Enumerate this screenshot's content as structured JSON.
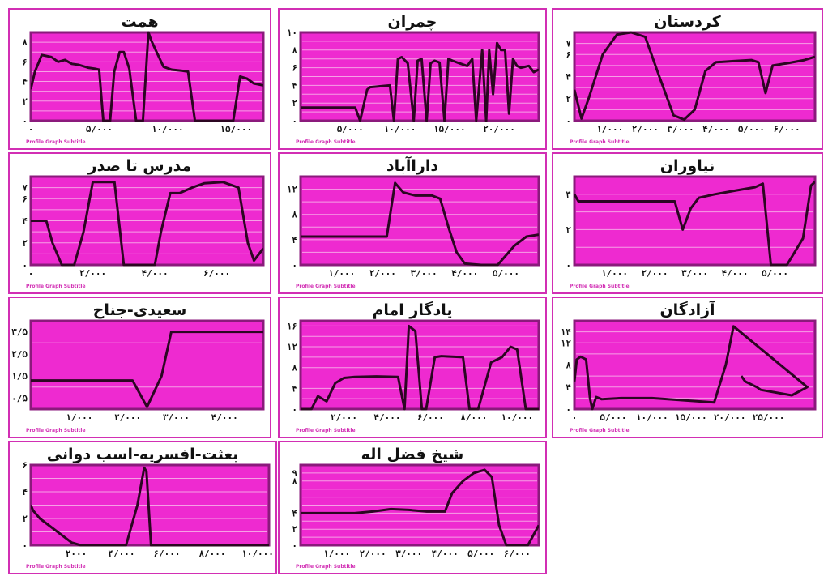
{
  "watermark": "Profile Graph Subtitle",
  "colors": {
    "plot_bg": "#ee2ad0",
    "frame": "#8b1a7c",
    "grid": "#f6a0e6",
    "line": "#2c0622",
    "border": "#d22fb4"
  },
  "chart_data": [
    {
      "type": "line",
      "title": "همت",
      "xlim": [
        0,
        17000
      ],
      "ylim": [
        0,
        9
      ],
      "xticks": [
        0,
        5000,
        10000,
        15000
      ],
      "xtick_labels": [
        "۰",
        "۵/۰۰۰",
        "۱۰/۰۰۰",
        "۱۵/۰۰۰"
      ],
      "yticks": [
        0,
        2,
        4,
        6,
        8
      ],
      "ytick_labels": [
        "۰",
        "۲",
        "۴",
        "۶",
        "۸"
      ],
      "x": [
        0,
        300,
        800,
        1500,
        2000,
        2500,
        3000,
        3500,
        4200,
        4700,
        5000,
        5300,
        5800,
        6100,
        6500,
        6800,
        7200,
        7700,
        8200,
        8600,
        8800,
        9200,
        9700,
        10300,
        11000,
        11500,
        12000,
        13000,
        14000,
        14500,
        14800,
        15300,
        15800,
        16300,
        17000
      ],
      "y": [
        3.2,
        5,
        6.7,
        6.5,
        6,
        6.2,
        5.8,
        5.7,
        5.4,
        5.3,
        5.2,
        0,
        0,
        5,
        7,
        7,
        5.3,
        0,
        0,
        9,
        8.2,
        7,
        5.5,
        5.2,
        5.1,
        5,
        0,
        0,
        0,
        0,
        0,
        4.5,
        4.3,
        3.8,
        3.6
      ]
    },
    {
      "type": "line",
      "title": "چمران",
      "xlim": [
        0,
        24000
      ],
      "ylim": [
        0,
        10
      ],
      "xticks": [
        5000,
        10000,
        15000,
        20000
      ],
      "xtick_labels": [
        "۵/۰۰۰",
        "۱۰/۰۰۰",
        "۱۵/۰۰۰",
        "۲۰/۰۰۰"
      ],
      "yticks": [
        0,
        2,
        4,
        6,
        8,
        10
      ],
      "ytick_labels": [
        "۰",
        "۲",
        "۴",
        "۶",
        "۸",
        "۱۰"
      ],
      "x": [
        0,
        5500,
        6000,
        6700,
        7000,
        9000,
        9400,
        9800,
        10200,
        10800,
        11400,
        11800,
        12200,
        12700,
        13100,
        13500,
        14000,
        14500,
        14900,
        15300,
        16000,
        16800,
        17300,
        17700,
        18300,
        18700,
        19000,
        19400,
        19800,
        20200,
        20600,
        21000,
        21400,
        21800,
        22200,
        23000,
        23500,
        24000
      ],
      "y": [
        1.5,
        1.5,
        0,
        3.5,
        3.8,
        4,
        0,
        7,
        7.2,
        6.5,
        0,
        6.8,
        7,
        0,
        6.5,
        6.8,
        6.6,
        0,
        7,
        6.8,
        6.5,
        6.2,
        7,
        0,
        8,
        0,
        8,
        3,
        8.8,
        8,
        8,
        0.8,
        7,
        6.2,
        6,
        6.2,
        5.5,
        5.8
      ]
    },
    {
      "type": "line",
      "title": "کردستان",
      "xlim": [
        0,
        6800
      ],
      "ylim": [
        0,
        8
      ],
      "xticks": [
        1000,
        2000,
        3000,
        4000,
        5000,
        6000
      ],
      "xtick_labels": [
        "۱/۰۰۰",
        "۲/۰۰۰",
        "۳/۰۰۰",
        "۴/۰۰۰",
        "۵/۰۰۰",
        "۶/۰۰۰"
      ],
      "yticks": [
        0,
        2,
        4,
        6,
        7
      ],
      "ytick_labels": [
        "۰",
        "۲",
        "۴",
        "۶",
        "۷"
      ],
      "x": [
        0,
        200,
        400,
        800,
        1200,
        1600,
        2000,
        2400,
        2800,
        3100,
        3400,
        3700,
        4000,
        4500,
        5000,
        5200,
        5400,
        5600,
        6000,
        6500,
        6800
      ],
      "y": [
        2.8,
        0.2,
        2,
        6,
        7.8,
        8,
        7.6,
        4,
        0.5,
        0.1,
        1,
        4.5,
        5.3,
        5.4,
        5.5,
        5.3,
        2.5,
        5,
        5.2,
        5.5,
        5.8
      ]
    },
    {
      "type": "line",
      "title": "مدرس تا صدر",
      "xlim": [
        0,
        7500
      ],
      "ylim": [
        0,
        8
      ],
      "xticks": [
        0,
        2000,
        4000,
        6000
      ],
      "xtick_labels": [
        "۰",
        "۲/۰۰۰",
        "۴/۰۰۰",
        "۶/۰۰۰"
      ],
      "yticks": [
        0,
        2,
        4,
        6,
        7
      ],
      "ytick_labels": [
        "۰",
        "۲",
        "۴",
        "۶",
        "۷"
      ],
      "x": [
        0,
        500,
        700,
        1000,
        1400,
        1700,
        2000,
        2400,
        2700,
        3000,
        3500,
        4000,
        4200,
        4500,
        4800,
        5200,
        5600,
        6200,
        6700,
        7000,
        7200,
        7500
      ],
      "y": [
        4,
        4,
        2,
        0,
        0,
        3,
        7.5,
        7.5,
        7.5,
        0,
        0,
        0,
        3,
        6.5,
        6.5,
        7,
        7.4,
        7.5,
        7,
        2,
        0.4,
        1.5
      ]
    },
    {
      "type": "line",
      "title": "داراآباد",
      "xlim": [
        0,
        5800
      ],
      "ylim": [
        0,
        14
      ],
      "xticks": [
        1000,
        2000,
        3000,
        4000,
        5000
      ],
      "xtick_labels": [
        "۱/۰۰۰",
        "۲/۰۰۰",
        "۳/۰۰۰",
        "۴/۰۰۰",
        "۵/۰۰۰"
      ],
      "yticks": [
        0,
        4,
        8,
        12
      ],
      "ytick_labels": [
        "۰",
        "۴",
        "۸",
        "۱۲"
      ],
      "x": [
        0,
        1900,
        2100,
        2300,
        2500,
        2800,
        3200,
        3400,
        3600,
        3800,
        4000,
        4400,
        4800,
        5200,
        5500,
        5800
      ],
      "y": [
        4.5,
        4.5,
        4.5,
        13,
        11.5,
        11,
        11,
        10.5,
        6,
        2,
        0.2,
        0,
        0,
        3,
        4.5,
        4.8
      ]
    },
    {
      "type": "line",
      "title": "نیاوران",
      "xlim": [
        0,
        6000
      ],
      "ylim": [
        0,
        5
      ],
      "xticks": [
        1000,
        2000,
        3000,
        4000,
        5000
      ],
      "xtick_labels": [
        "۱/۰۰۰",
        "۲/۰۰۰",
        "۳/۰۰۰",
        "۴/۰۰۰",
        "۵/۰۰۰"
      ],
      "yticks": [
        0,
        2,
        4
      ],
      "ytick_labels": [
        "۰",
        "۲",
        "۴"
      ],
      "x": [
        0,
        100,
        1500,
        2500,
        2700,
        2900,
        3100,
        3500,
        4000,
        4500,
        4700,
        4900,
        5300,
        5700,
        5900,
        6000
      ],
      "y": [
        4,
        3.6,
        3.6,
        3.6,
        2,
        3.2,
        3.8,
        4,
        4.2,
        4.4,
        4.6,
        0,
        0,
        1.5,
        4.5,
        4.7
      ]
    },
    {
      "type": "line",
      "title": "سعیدی-جناح",
      "xlim": [
        0,
        4800
      ],
      "ylim": [
        0,
        4
      ],
      "xticks": [
        1000,
        2000,
        3000,
        4000
      ],
      "xtick_labels": [
        "۱/۰۰۰",
        "۲/۰۰۰",
        "۳/۰۰۰",
        "۴/۰۰۰"
      ],
      "yticks": [
        0.5,
        1.5,
        2.5,
        3.5
      ],
      "ytick_labels": [
        "۰/۵",
        "۱/۵",
        "۲/۵",
        "۳/۵"
      ],
      "x": [
        0,
        1800,
        2100,
        2400,
        2700,
        2900,
        3100,
        4800
      ],
      "y": [
        1.3,
        1.3,
        1.3,
        0.1,
        1.5,
        3.5,
        3.5,
        3.5
      ]
    },
    {
      "type": "line",
      "title": "یادگار امام",
      "xlim": [
        0,
        11000
      ],
      "ylim": [
        0,
        17
      ],
      "xticks": [
        2000,
        4000,
        6000,
        8000,
        10000
      ],
      "xtick_labels": [
        "۲/۰۰۰",
        "۴/۰۰۰",
        "۶/۰۰۰",
        "۸/۰۰۰",
        "۱۰/۰۰۰"
      ],
      "yticks": [
        0,
        4,
        8,
        12,
        16
      ],
      "ytick_labels": [
        "۰",
        "۴",
        "۸",
        "۱۲",
        "۱۶"
      ],
      "x": [
        0,
        500,
        800,
        1200,
        1600,
        2000,
        2500,
        3500,
        4500,
        4800,
        5000,
        5300,
        5600,
        5800,
        6200,
        6500,
        7500,
        7800,
        8200,
        8800,
        9300,
        9700,
        10000,
        10400,
        10700,
        11000
      ],
      "y": [
        0,
        0,
        2.5,
        1.5,
        5,
        6,
        6.2,
        6.3,
        6.2,
        0,
        16,
        15,
        0,
        0,
        10,
        10.2,
        10,
        0,
        0,
        9,
        10,
        12,
        11.5,
        0,
        0,
        0
      ]
    },
    {
      "type": "line",
      "title": "آزادگان",
      "xlim": [
        0,
        31000
      ],
      "ylim": [
        0,
        16
      ],
      "xticks": [
        0,
        5000,
        10000,
        15000,
        20000,
        25000
      ],
      "xtick_labels": [
        "۰",
        "۵/۰۰۰",
        "۱۰/۰۰۰",
        "۱۵/۰۰۰",
        "۲۰/۰۰۰",
        "۲۵/۰۰۰"
      ],
      "yticks": [
        0,
        4,
        8,
        12,
        14
      ],
      "ytick_labels": [
        "۰",
        "۴",
        "۸",
        "۱۲",
        "۱۴"
      ],
      "x": [
        0,
        300,
        800,
        1500,
        2000,
        2300,
        2800,
        3500,
        6000,
        10000,
        15000,
        18000,
        19500,
        20500,
        30000,
        28000,
        24000,
        23500,
        22000,
        21500
      ],
      "y": [
        5,
        9,
        9.5,
        9,
        2,
        0,
        2.2,
        1.8,
        2,
        2,
        1.5,
        1.2,
        8,
        15,
        4,
        2.5,
        3.5,
        4,
        5,
        6
      ]
    },
    {
      "type": "line",
      "title": "بعثت-افسریه-اسب دوانی",
      "xlim": [
        0,
        10500
      ],
      "ylim": [
        0,
        6
      ],
      "xticks": [
        2000,
        4000,
        6000,
        8000,
        10000
      ],
      "xtick_labels": [
        "۲۰۰۰",
        "۴/۰۰۰",
        "۶/۰۰۰",
        "۸/۰۰۰",
        "۱۰/۰۰۰"
      ],
      "yticks": [
        0,
        2,
        4,
        6
      ],
      "ytick_labels": [
        "۰",
        "۲",
        "۴",
        "۶"
      ],
      "x": [
        0,
        100,
        400,
        1800,
        2200,
        4000,
        4200,
        4700,
        5000,
        5100,
        5300,
        5500,
        10500
      ],
      "y": [
        3,
        2.6,
        2,
        0.2,
        0,
        0,
        0,
        3,
        5.8,
        5.5,
        0,
        0,
        0
      ]
    },
    {
      "type": "line",
      "title": "شیخ فضل اله",
      "xlim": [
        0,
        6600
      ],
      "ylim": [
        0,
        10
      ],
      "xticks": [
        1000,
        2000,
        3000,
        4000,
        5000,
        6000
      ],
      "xtick_labels": [
        "۱/۰۰۰",
        "۲/۰۰۰",
        "۳/۰۰۰",
        "۴/۰۰۰",
        "۵/۰۰۰",
        "۶/۰۰۰"
      ],
      "yticks": [
        0,
        2,
        4,
        8,
        9
      ],
      "ytick_labels": [
        "۰",
        "۲",
        "۴",
        "۸",
        "۹"
      ],
      "x": [
        0,
        1000,
        1500,
        2000,
        2500,
        3000,
        3500,
        4000,
        4200,
        4500,
        4800,
        5100,
        5300,
        5500,
        5700,
        6000,
        6300,
        6600
      ],
      "y": [
        4,
        4,
        4,
        4.2,
        4.5,
        4.4,
        4.2,
        4.2,
        6.5,
        8,
        9,
        9.4,
        8.5,
        2.5,
        0,
        0,
        0,
        2.5
      ]
    }
  ]
}
